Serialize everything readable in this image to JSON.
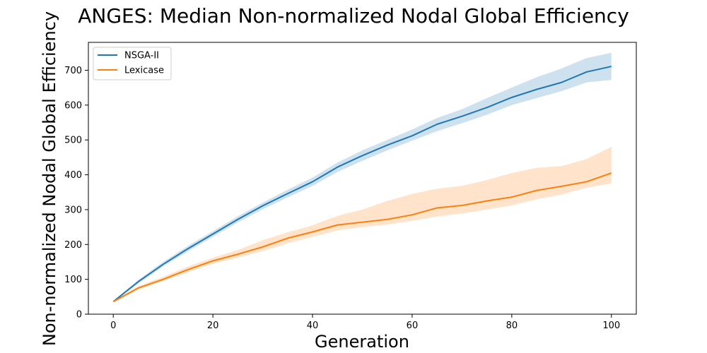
{
  "chart_data": {
    "type": "line",
    "title": "ANGES: Median Non-normalized Nodal Global Efficiency",
    "xlabel": "Generation",
    "ylabel": "Non-normalized Nodal Global Efficiency",
    "xlim": [
      -5,
      105
    ],
    "ylim": [
      0,
      780
    ],
    "xticks": [
      0,
      20,
      40,
      60,
      80,
      100
    ],
    "yticks": [
      0,
      100,
      200,
      300,
      400,
      500,
      600,
      700
    ],
    "grid": false,
    "legend_position": "top-left",
    "series": [
      {
        "name": "NSGA-II",
        "color": "#1f77b4",
        "x": [
          0,
          5,
          10,
          15,
          20,
          25,
          30,
          35,
          40,
          45,
          50,
          55,
          60,
          65,
          70,
          75,
          80,
          85,
          90,
          95,
          100
        ],
        "y": [
          36,
          93,
          143,
          188,
          230,
          272,
          311,
          346,
          380,
          422,
          455,
          485,
          512,
          545,
          568,
          593,
          622,
          645,
          665,
          695,
          711
        ],
        "band_lower": [
          34,
          88,
          137,
          180,
          222,
          263,
          301,
          335,
          368,
          408,
          440,
          470,
          498,
          525,
          548,
          572,
          600,
          620,
          640,
          665,
          672
        ],
        "band_upper": [
          38,
          98,
          150,
          196,
          238,
          281,
          320,
          357,
          392,
          435,
          470,
          500,
          530,
          563,
          588,
          620,
          650,
          680,
          705,
          735,
          750
        ]
      },
      {
        "name": "Lexicase",
        "color": "#ff7f0e",
        "x": [
          0,
          5,
          10,
          15,
          20,
          25,
          30,
          35,
          40,
          45,
          50,
          55,
          60,
          65,
          70,
          75,
          80,
          85,
          90,
          95,
          100
        ],
        "y": [
          36,
          75,
          100,
          128,
          153,
          172,
          193,
          218,
          236,
          256,
          264,
          272,
          285,
          305,
          312,
          325,
          336,
          355,
          367,
          380,
          405
        ],
        "band_lower": [
          34,
          70,
          95,
          120,
          144,
          162,
          181,
          203,
          222,
          240,
          250,
          257,
          268,
          280,
          289,
          300,
          312,
          330,
          343,
          363,
          375
        ],
        "band_upper": [
          38,
          80,
          107,
          137,
          162,
          184,
          212,
          235,
          255,
          282,
          300,
          325,
          345,
          360,
          368,
          385,
          405,
          420,
          425,
          445,
          480
        ]
      }
    ]
  }
}
